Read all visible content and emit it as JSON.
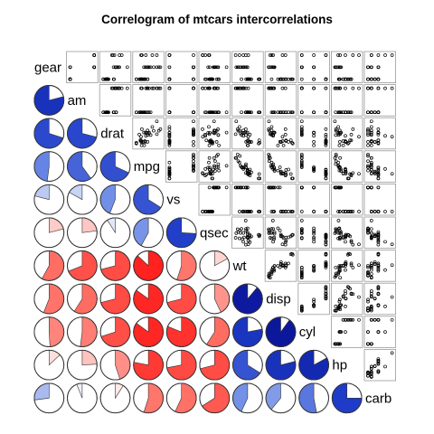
{
  "chart_data": {
    "type": "correlogram",
    "title": "Correlogram of mtcars intercorrelations",
    "variables": [
      "gear",
      "am",
      "drat",
      "mpg",
      "vs",
      "qsec",
      "wt",
      "disp",
      "cyl",
      "hp",
      "carb"
    ],
    "lower_panel": "pie",
    "upper_panel": "points",
    "diag_panel": "labels",
    "color_scale": {
      "negative": "#FF0000",
      "zero": "#FFFFFF",
      "positive": "#00007F"
    },
    "correlations": [
      [
        1.0,
        0.79,
        0.7,
        0.48,
        0.21,
        -0.21,
        -0.58,
        -0.56,
        -0.49,
        -0.13,
        0.27
      ],
      [
        0.79,
        1.0,
        0.71,
        0.6,
        0.17,
        -0.23,
        -0.69,
        -0.59,
        -0.52,
        -0.24,
        0.06
      ],
      [
        0.7,
        0.71,
        1.0,
        0.68,
        0.44,
        0.09,
        -0.71,
        -0.71,
        -0.7,
        -0.45,
        -0.09
      ],
      [
        0.48,
        0.6,
        0.68,
        1.0,
        0.66,
        0.42,
        -0.87,
        -0.85,
        -0.85,
        -0.78,
        -0.55
      ],
      [
        0.21,
        0.17,
        0.44,
        0.66,
        1.0,
        0.74,
        -0.55,
        -0.71,
        -0.81,
        -0.72,
        -0.57
      ],
      [
        -0.21,
        -0.23,
        0.09,
        0.42,
        0.74,
        1.0,
        -0.17,
        -0.43,
        -0.59,
        -0.71,
        -0.66
      ],
      [
        -0.58,
        -0.69,
        -0.71,
        -0.87,
        -0.55,
        -0.17,
        1.0,
        0.89,
        0.78,
        0.66,
        0.43
      ],
      [
        -0.56,
        -0.59,
        -0.71,
        -0.85,
        -0.71,
        -0.43,
        0.89,
        1.0,
        0.9,
        0.79,
        0.39
      ],
      [
        -0.49,
        -0.52,
        -0.7,
        -0.85,
        -0.81,
        -0.59,
        0.78,
        0.9,
        1.0,
        0.83,
        0.53
      ],
      [
        -0.13,
        -0.24,
        -0.45,
        -0.78,
        -0.72,
        -0.71,
        0.66,
        0.79,
        0.83,
        1.0,
        0.75
      ],
      [
        0.27,
        0.06,
        -0.09,
        -0.55,
        -0.57,
        -0.66,
        0.43,
        0.39,
        0.53,
        0.75,
        1.0
      ]
    ],
    "values": {
      "gear": [
        4,
        4,
        4,
        3,
        3,
        3,
        3,
        4,
        4,
        4,
        4,
        3,
        3,
        3,
        3,
        3,
        3,
        4,
        4,
        4,
        3,
        3,
        3,
        3,
        3,
        4,
        5,
        5,
        5,
        5,
        5,
        4
      ],
      "am": [
        1,
        1,
        1,
        0,
        0,
        0,
        0,
        0,
        0,
        0,
        0,
        0,
        0,
        0,
        0,
        0,
        0,
        1,
        1,
        1,
        0,
        0,
        0,
        0,
        0,
        1,
        1,
        1,
        1,
        1,
        1,
        1
      ],
      "drat": [
        3.9,
        3.9,
        3.85,
        3.08,
        3.15,
        2.76,
        3.21,
        3.69,
        3.92,
        3.92,
        3.92,
        3.07,
        3.07,
        3.07,
        2.93,
        3.0,
        3.23,
        4.08,
        4.93,
        4.22,
        3.7,
        2.76,
        3.15,
        3.73,
        3.08,
        4.08,
        4.43,
        3.77,
        4.22,
        3.62,
        3.54,
        4.11
      ],
      "mpg": [
        21.0,
        21.0,
        22.8,
        21.4,
        18.7,
        18.1,
        14.3,
        24.4,
        22.8,
        19.2,
        17.8,
        16.4,
        17.3,
        15.2,
        10.4,
        10.4,
        14.7,
        32.4,
        30.4,
        33.9,
        21.5,
        15.5,
        15.2,
        13.3,
        19.2,
        27.3,
        26.0,
        30.4,
        15.8,
        19.7,
        15.0,
        21.4
      ],
      "vs": [
        0,
        0,
        1,
        1,
        0,
        1,
        0,
        1,
        1,
        1,
        1,
        0,
        0,
        0,
        0,
        0,
        0,
        1,
        1,
        1,
        1,
        0,
        0,
        0,
        0,
        1,
        0,
        1,
        0,
        0,
        0,
        1
      ],
      "qsec": [
        16.46,
        17.02,
        18.61,
        19.44,
        17.02,
        20.22,
        15.84,
        20.0,
        22.9,
        18.3,
        18.9,
        17.4,
        17.6,
        18.0,
        17.98,
        17.82,
        17.42,
        19.47,
        18.52,
        19.9,
        20.01,
        16.87,
        17.3,
        15.41,
        17.05,
        18.9,
        16.7,
        16.9,
        14.5,
        15.5,
        14.6,
        18.6
      ],
      "wt": [
        2.62,
        2.875,
        2.32,
        3.215,
        3.44,
        3.46,
        3.57,
        3.19,
        3.15,
        3.44,
        3.44,
        4.07,
        3.73,
        3.78,
        5.25,
        5.424,
        5.345,
        2.2,
        1.615,
        1.835,
        2.465,
        3.52,
        3.435,
        3.84,
        3.845,
        1.935,
        2.14,
        1.513,
        3.17,
        2.77,
        3.57,
        2.78
      ],
      "disp": [
        160.0,
        160.0,
        108.0,
        258.0,
        360.0,
        225.0,
        360.0,
        146.7,
        140.8,
        167.6,
        167.6,
        275.8,
        275.8,
        275.8,
        472.0,
        460.0,
        440.0,
        78.7,
        75.7,
        71.1,
        120.1,
        318.0,
        304.0,
        350.0,
        400.0,
        79.0,
        120.3,
        95.1,
        351.0,
        145.0,
        301.0,
        121.0
      ],
      "cyl": [
        6,
        6,
        4,
        6,
        8,
        6,
        8,
        4,
        4,
        6,
        6,
        8,
        8,
        8,
        8,
        8,
        8,
        4,
        4,
        4,
        4,
        8,
        8,
        8,
        8,
        4,
        4,
        4,
        8,
        6,
        8,
        4
      ],
      "hp": [
        110,
        110,
        93,
        110,
        175,
        105,
        245,
        62,
        95,
        123,
        123,
        180,
        180,
        180,
        205,
        215,
        230,
        66,
        52,
        65,
        97,
        150,
        150,
        245,
        175,
        66,
        91,
        113,
        264,
        175,
        335,
        109
      ],
      "carb": [
        4,
        4,
        1,
        1,
        2,
        1,
        4,
        2,
        2,
        4,
        4,
        3,
        3,
        3,
        4,
        4,
        4,
        1,
        2,
        1,
        1,
        2,
        2,
        4,
        2,
        1,
        2,
        2,
        4,
        6,
        8,
        2
      ]
    }
  }
}
